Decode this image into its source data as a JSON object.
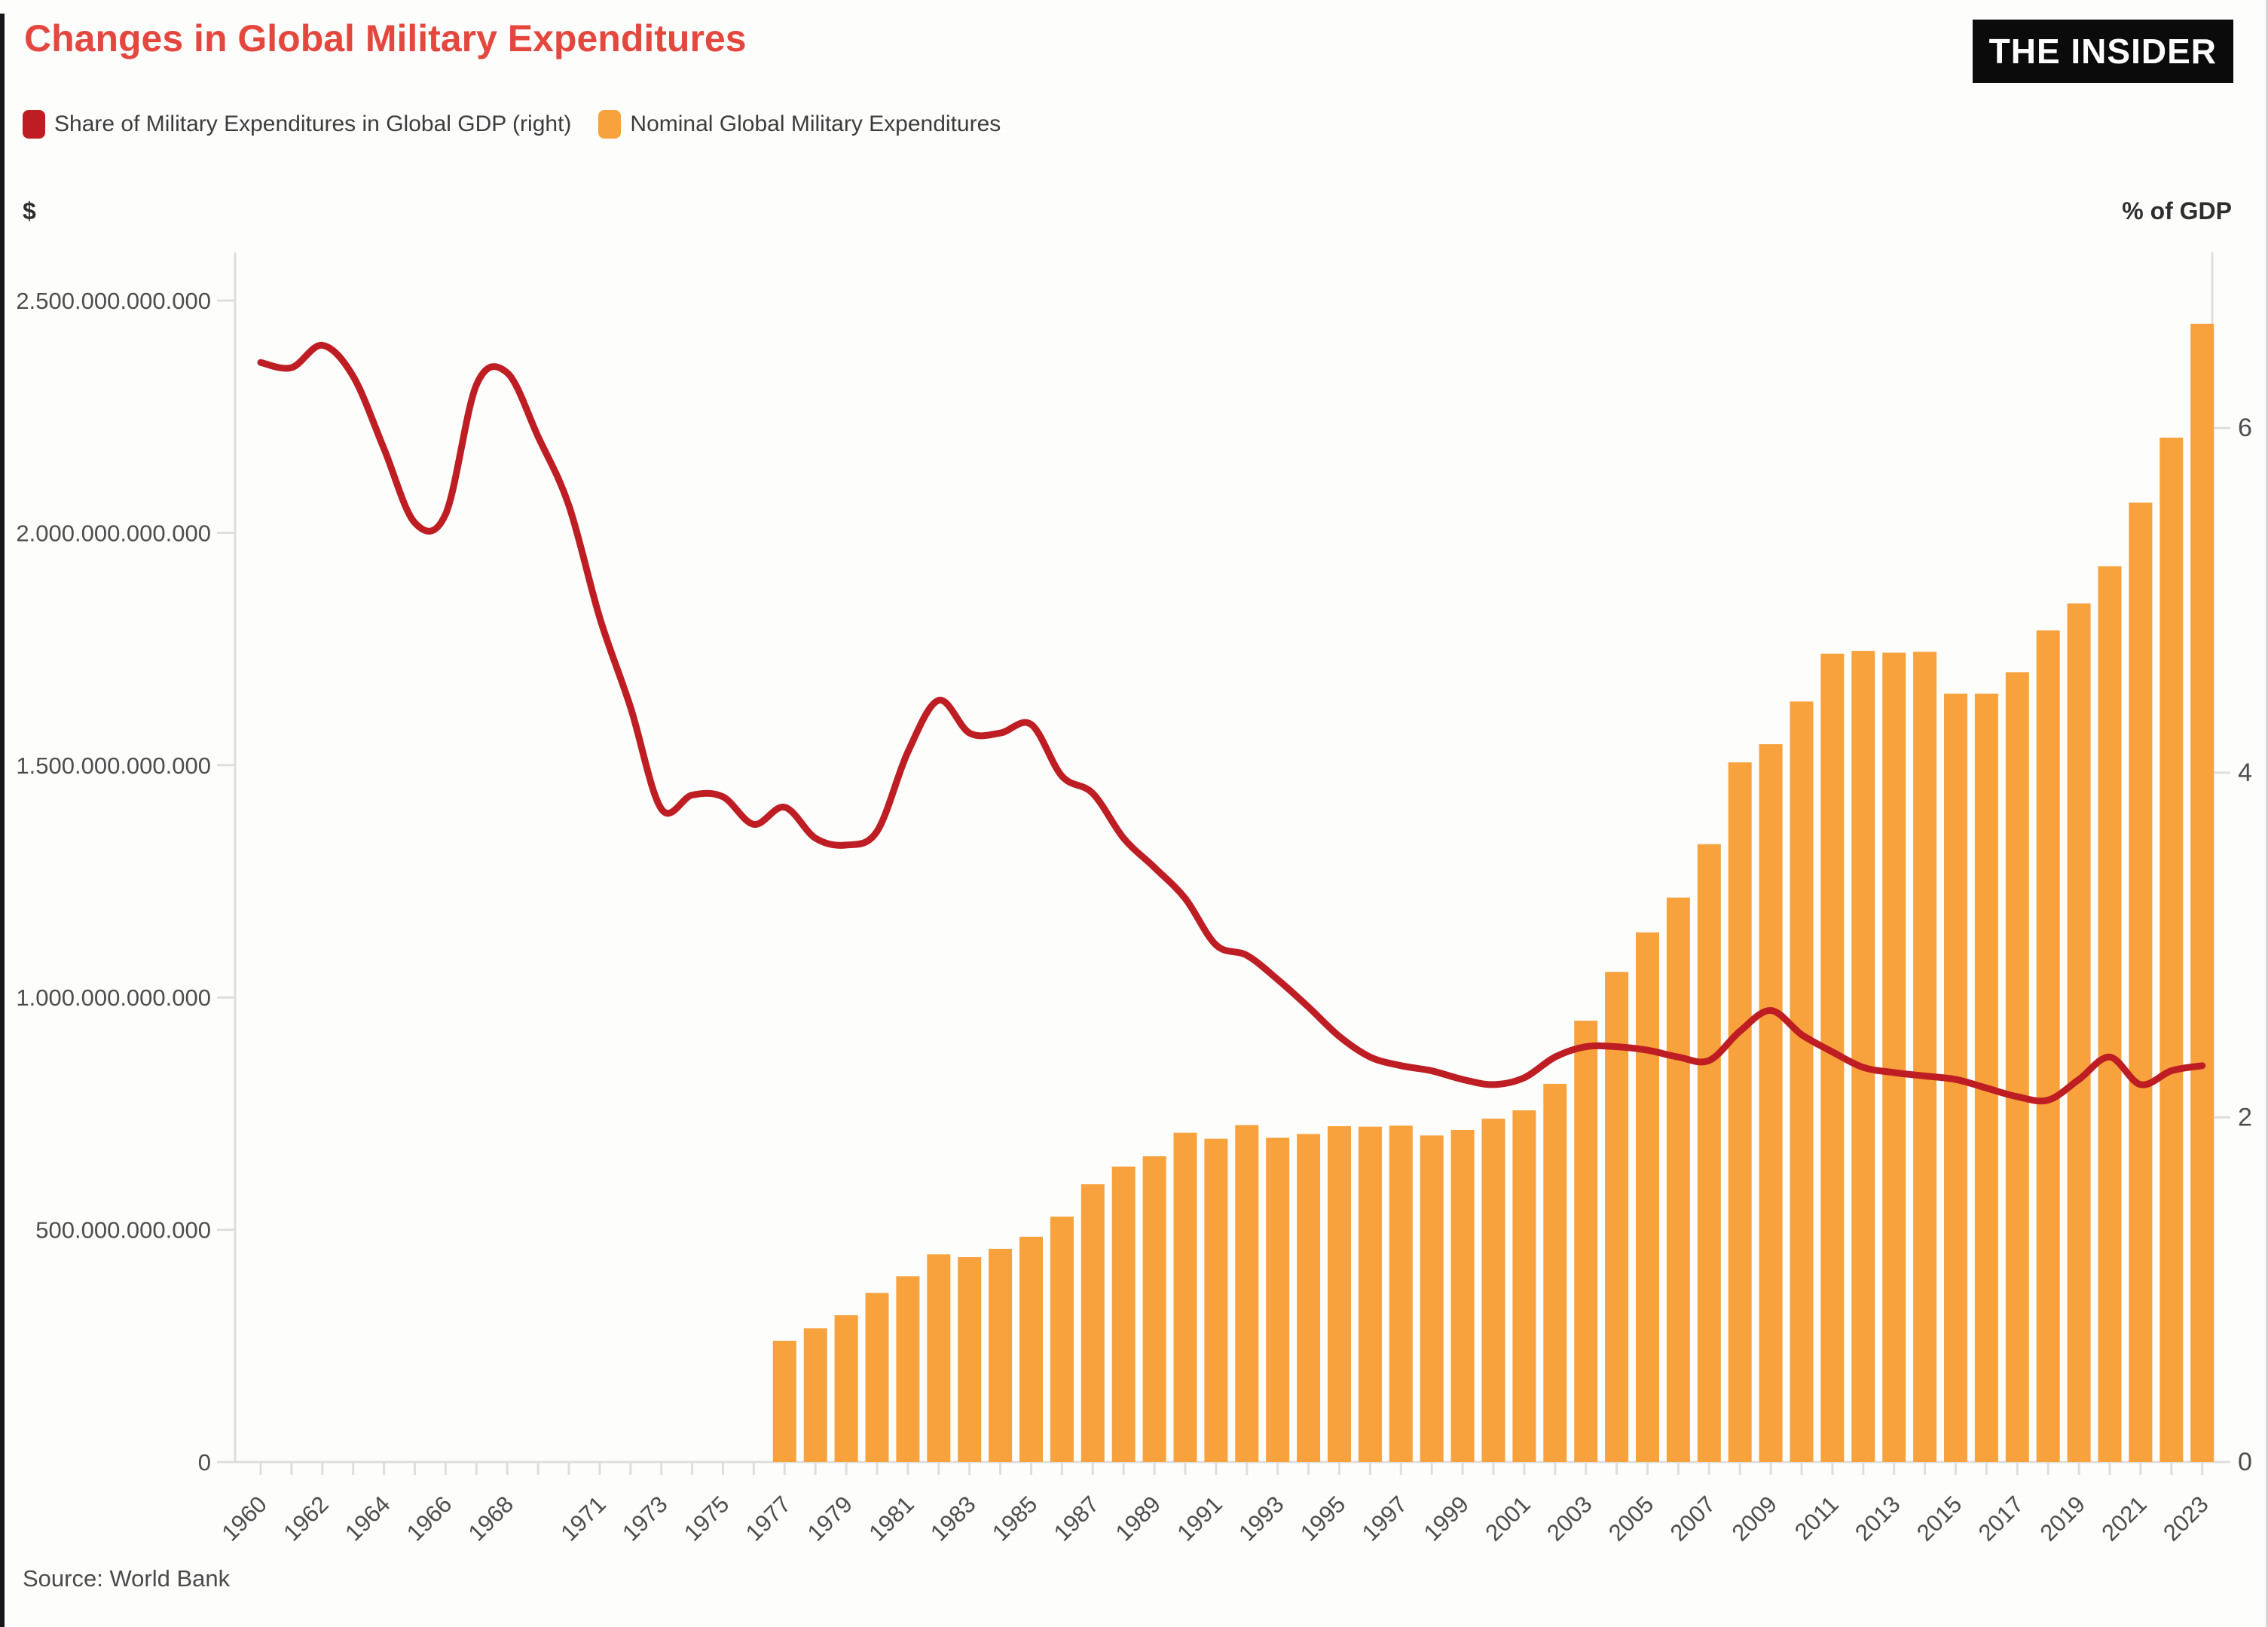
{
  "header": {
    "title": "Changes in Global Military Expenditures",
    "logo": "THE INSIDER"
  },
  "legend": [
    {
      "label": "Share of Military Expenditures in Global GDP (right)",
      "color": "#BE1E23"
    },
    {
      "label": "Nominal Global Military Expenditures",
      "color": "#F7A23C"
    }
  ],
  "axes": {
    "left_unit": "$",
    "right_unit": "% of GDP"
  },
  "source": "Source: World Bank",
  "colors": {
    "title": "#E4473E",
    "bar": "#F7A23C",
    "line": "#BE1E23",
    "axis": "#dedede",
    "tick_text": "#4d4d4d"
  },
  "chart_data": {
    "type": "bar+line",
    "title": "Changes in Global Military Expenditures",
    "grid": false,
    "legend_position": "top-left",
    "x": [
      1960,
      1961,
      1962,
      1963,
      1964,
      1965,
      1966,
      1967,
      1968,
      1969,
      1970,
      1971,
      1972,
      1973,
      1974,
      1975,
      1976,
      1977,
      1978,
      1979,
      1980,
      1981,
      1982,
      1983,
      1984,
      1985,
      1986,
      1987,
      1988,
      1989,
      1990,
      1991,
      1992,
      1993,
      1994,
      1995,
      1996,
      1997,
      1998,
      1999,
      2000,
      2001,
      2002,
      2003,
      2004,
      2005,
      2006,
      2007,
      2008,
      2009,
      2010,
      2011,
      2012,
      2013,
      2014,
      2015,
      2016,
      2017,
      2018,
      2019,
      2020,
      2021,
      2022,
      2023
    ],
    "x_tick_labels": [
      "1960",
      "1962",
      "1964",
      "1966",
      "1968",
      "1971",
      "1973",
      "1975",
      "1977",
      "1979",
      "1981",
      "1983",
      "1985",
      "1987",
      "1989",
      "1991",
      "1993",
      "1995",
      "1997",
      "1999",
      "2001",
      "2003",
      "2005",
      "2007",
      "2009",
      "2011",
      "2013",
      "2015",
      "2017",
      "2019",
      "2021",
      "2023"
    ],
    "left_axis": {
      "label": "$",
      "unit": "USD",
      "ticks_billions": [
        0,
        500,
        1000,
        1500,
        2000,
        2500
      ],
      "tick_labels": [
        "0",
        "500.000.000.000",
        "1.000.000.000.000",
        "1.500.000.000.000",
        "2.000.000.000.000",
        "2.500.000.000.000"
      ],
      "max_billions": 2500
    },
    "right_axis": {
      "label": "% of GDP",
      "ticks": [
        0,
        2,
        4,
        6
      ],
      "tick_labels": [
        "0",
        "2",
        "4",
        "6"
      ],
      "max": 6
    },
    "series": [
      {
        "name": "Nominal Global Military Expenditures",
        "type": "bar",
        "axis": "left",
        "unit": "billion USD",
        "color": "#F7A23C",
        "values": [
          null,
          null,
          null,
          null,
          null,
          null,
          null,
          null,
          null,
          null,
          null,
          null,
          null,
          null,
          null,
          null,
          null,
          261,
          288,
          316,
          364,
          400,
          447,
          441,
          459,
          485,
          528,
          598,
          636,
          658,
          709,
          696,
          725,
          698,
          706,
          723,
          722,
          724,
          703,
          715,
          739,
          757,
          814,
          950,
          1055,
          1140,
          1215,
          1330,
          1506,
          1545,
          1637,
          1740,
          1746,
          1742,
          1744,
          1654,
          1654,
          1700,
          1790,
          1848,
          1928,
          2065,
          2205,
          2450
        ]
      },
      {
        "name": "Share of Military Expenditures in Global GDP",
        "type": "line",
        "axis": "right",
        "unit": "% of GDP",
        "color": "#BE1E23",
        "values": [
          6.38,
          6.35,
          6.48,
          6.3,
          5.88,
          5.45,
          5.5,
          6.25,
          6.32,
          5.95,
          5.55,
          4.9,
          4.38,
          3.79,
          3.87,
          3.86,
          3.7,
          3.8,
          3.62,
          3.58,
          3.66,
          4.12,
          4.42,
          4.23,
          4.23,
          4.28,
          3.98,
          3.88,
          3.62,
          3.45,
          3.27,
          3.0,
          2.94,
          2.8,
          2.64,
          2.47,
          2.35,
          2.3,
          2.27,
          2.22,
          2.19,
          2.23,
          2.35,
          2.41,
          2.41,
          2.39,
          2.35,
          2.33,
          2.5,
          2.62,
          2.48,
          2.38,
          2.29,
          2.26,
          2.24,
          2.22,
          2.17,
          2.12,
          2.1,
          2.22,
          2.35,
          2.19,
          2.27,
          2.3
        ]
      }
    ]
  }
}
